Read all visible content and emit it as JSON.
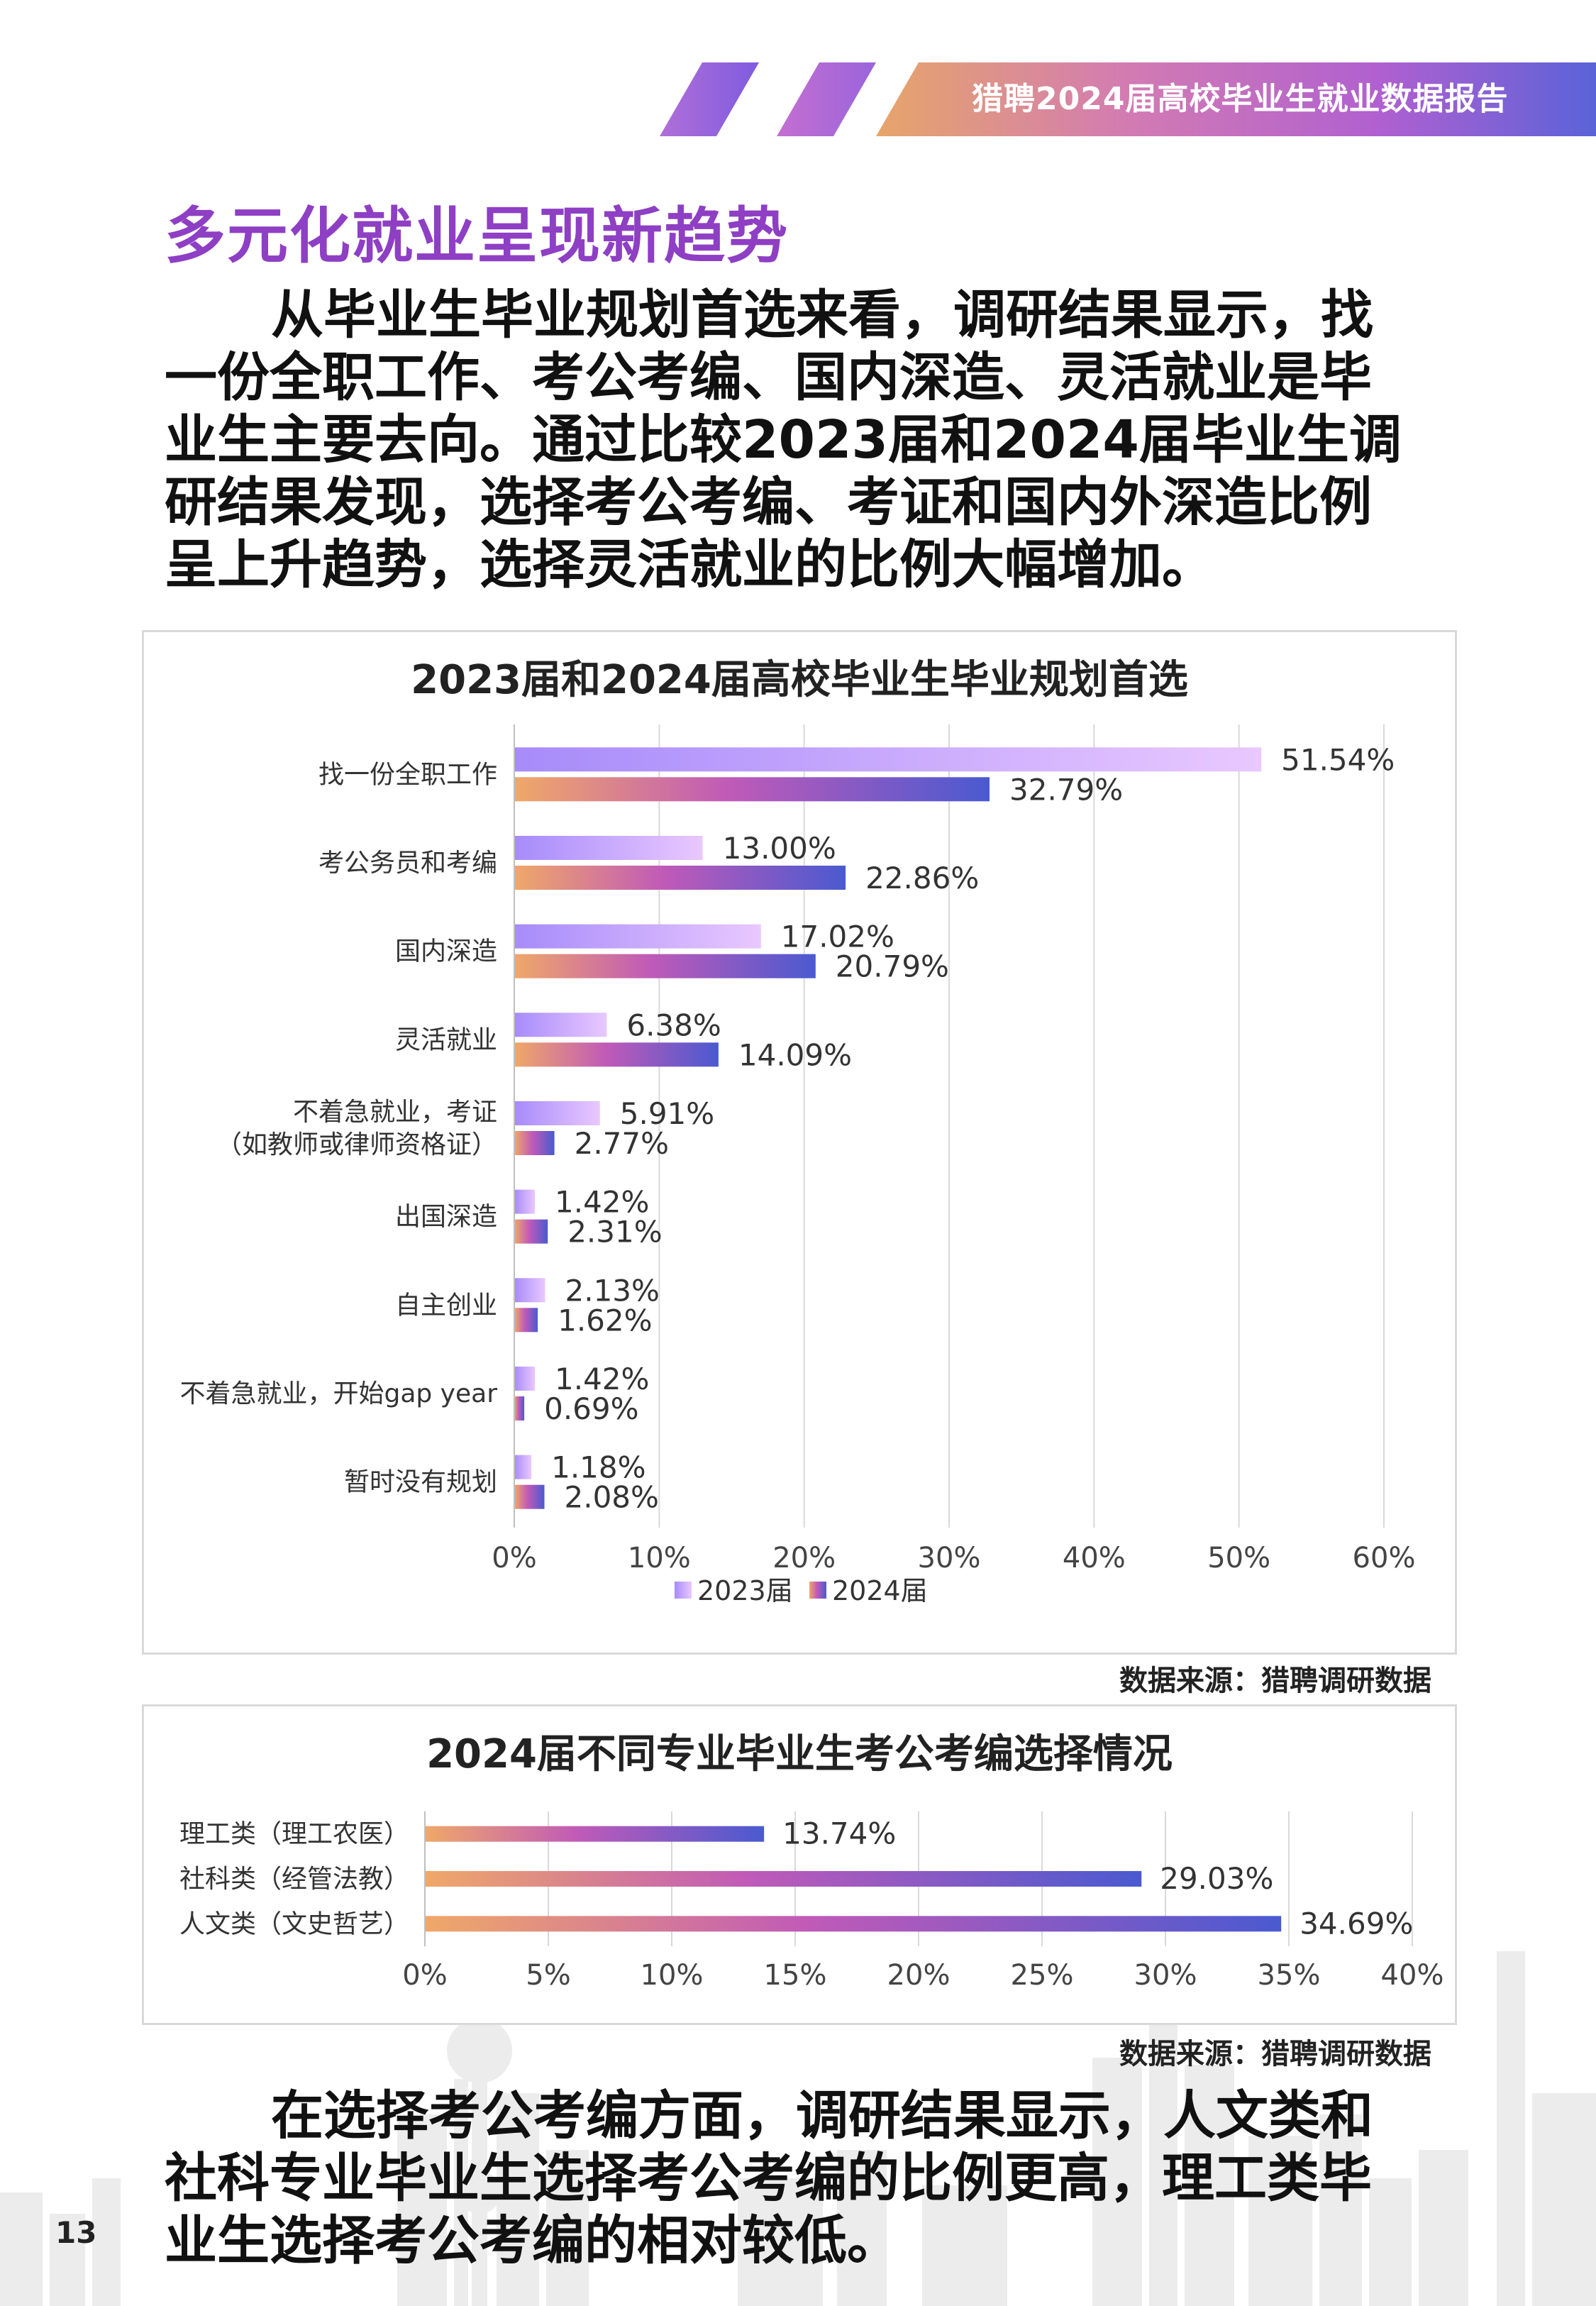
{
  "header": {
    "title": "猎聘2024届高校毕业生就业数据报告"
  },
  "section_title": "多元化就业呈现新趋势",
  "paragraph1": {
    "lines": [
      "从毕业生毕业规划首选来看，调研结果显示，找",
      "一份全职工作、考公考编、国内深造、灵活就业是毕",
      "业生主要去向。通过比较2023届和2024届毕业生调",
      "研结果发现，选择考公考编、考证和国内外深造比例",
      "呈上升趋势，选择灵活就业的比例大幅增加。"
    ]
  },
  "paragraph2": {
    "lines": [
      "在选择考公考编方面，调研结果显示，人文类和",
      "社科专业毕业生选择考公考编的比例更高，理工类毕",
      "业生选择考公考编的相对较低。"
    ]
  },
  "source1": "数据来源：猎聘调研数据",
  "source2": "数据来源：猎聘调研数据",
  "page_number": "13",
  "colors": {
    "accent": "#8e3fc4",
    "bar_2023_start": "#a78bfa",
    "bar_2023_end": "#e9c8ff",
    "bar_2024_start": "#f0a868",
    "bar_2024_mid": "#c05ab8",
    "bar_2024_end": "#4a5ad0"
  },
  "chart_data": [
    {
      "type": "bar",
      "orientation": "horizontal",
      "title": "2023届和2024届高校毕业生毕业规划首选",
      "categories": [
        "找一份全职工作",
        "考公务员和考编",
        "国内深造",
        "灵活就业",
        "不着急就业，考证（如教师或律师资格证）",
        "出国深造",
        "自主创业",
        "不着急就业，开始gap year",
        "暂时没有规划"
      ],
      "category_lines": [
        [
          "找一份全职工作"
        ],
        [
          "考公务员和考编"
        ],
        [
          "国内深造"
        ],
        [
          "灵活就业"
        ],
        [
          "不着急就业，考证",
          "（如教师或律师资格证）"
        ],
        [
          "出国深造"
        ],
        [
          "自主创业"
        ],
        [
          "不着急就业，开始gap year"
        ],
        [
          "暂时没有规划"
        ]
      ],
      "series": [
        {
          "name": "2023届",
          "values": [
            51.54,
            13.0,
            17.02,
            6.38,
            5.91,
            1.42,
            2.13,
            1.42,
            1.18
          ],
          "labels": [
            "51.54%",
            "13.00%",
            "17.02%",
            "6.38%",
            "5.91%",
            "1.42%",
            "2.13%",
            "1.42%",
            "1.18%"
          ]
        },
        {
          "name": "2024届",
          "values": [
            32.79,
            22.86,
            20.79,
            14.09,
            2.77,
            2.31,
            1.62,
            0.69,
            2.08
          ],
          "labels": [
            "32.79%",
            "22.86%",
            "20.79%",
            "14.09%",
            "2.77%",
            "2.31%",
            "1.62%",
            "0.69%",
            "2.08%"
          ]
        }
      ],
      "xlim": [
        0,
        60
      ],
      "xticks": [
        "0%",
        "10%",
        "20%",
        "30%",
        "40%",
        "50%",
        "60%"
      ],
      "grid": true,
      "legend_position": "bottom"
    },
    {
      "type": "bar",
      "orientation": "horizontal",
      "title": "2024届不同专业毕业生考公考编选择情况",
      "categories": [
        "理工类（理工农医）",
        "社科类（经管法教）",
        "人文类（文史哲艺）"
      ],
      "values": [
        13.74,
        29.03,
        34.69
      ],
      "labels": [
        "13.74%",
        "29.03%",
        "34.69%"
      ],
      "xlim": [
        0,
        40
      ],
      "xticks": [
        "0%",
        "5%",
        "10%",
        "15%",
        "20%",
        "25%",
        "30%",
        "35%",
        "40%"
      ],
      "grid": true
    }
  ]
}
